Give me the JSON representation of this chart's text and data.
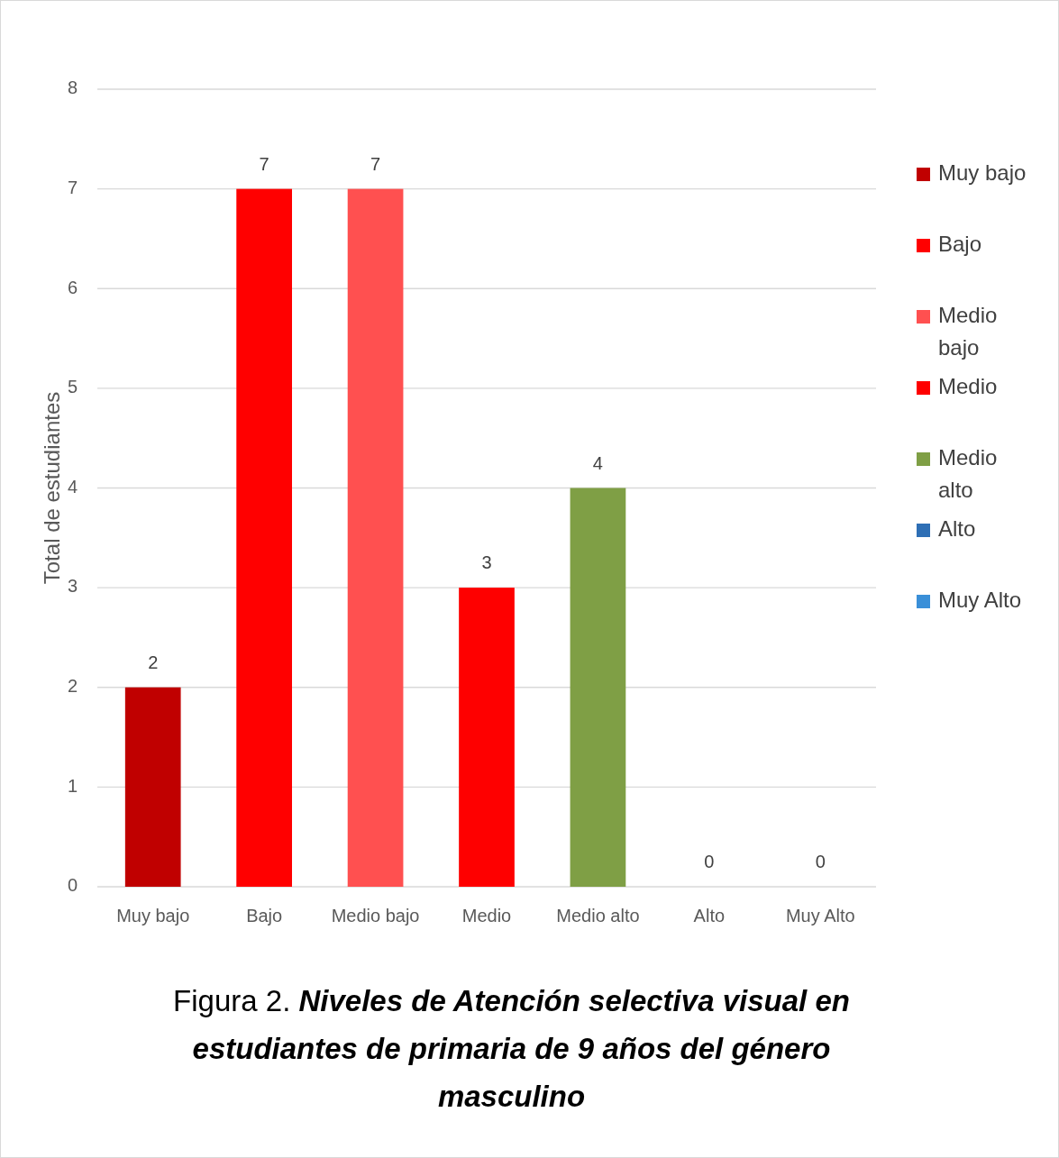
{
  "chart_data": {
    "type": "bar",
    "title": "Figura 2. Niveles de Atención selectiva visual en estudiantes de primaria de 9 años del género masculino",
    "ylabel": "Total de estudiantes",
    "categories": [
      "Muy bajo",
      "Bajo",
      "Medio bajo",
      "Medio",
      "Medio alto",
      "Alto",
      "Muy Alto"
    ],
    "series": [
      {
        "name": "Muy bajo",
        "color": "#c00000",
        "values": [
          2,
          null,
          null,
          null,
          null,
          null,
          null
        ]
      },
      {
        "name": "Bajo",
        "color": "#ff0000",
        "values": [
          null,
          7,
          null,
          null,
          null,
          null,
          null
        ]
      },
      {
        "name": "Medio bajo",
        "color": "#ff5050",
        "values": [
          null,
          null,
          7,
          null,
          null,
          null,
          null
        ]
      },
      {
        "name": "Medio",
        "color": "#fe0000",
        "values": [
          null,
          null,
          null,
          3,
          null,
          null,
          null
        ]
      },
      {
        "name": "Medio alto",
        "color": "#7f9f45",
        "values": [
          null,
          null,
          null,
          null,
          4,
          null,
          null
        ]
      },
      {
        "name": "Alto",
        "color": "#2e6fb5",
        "values": [
          null,
          null,
          null,
          null,
          null,
          0,
          null
        ]
      },
      {
        "name": "Muy Alto",
        "color": "#3a8fd8",
        "values": [
          null,
          null,
          null,
          null,
          null,
          null,
          0
        ]
      }
    ],
    "stacked": true,
    "ylim": [
      0,
      8
    ],
    "yticks": [
      0,
      1,
      2,
      3,
      4,
      5,
      6,
      7,
      8
    ],
    "grid": "y",
    "legend": "right",
    "data_labels": true
  }
}
